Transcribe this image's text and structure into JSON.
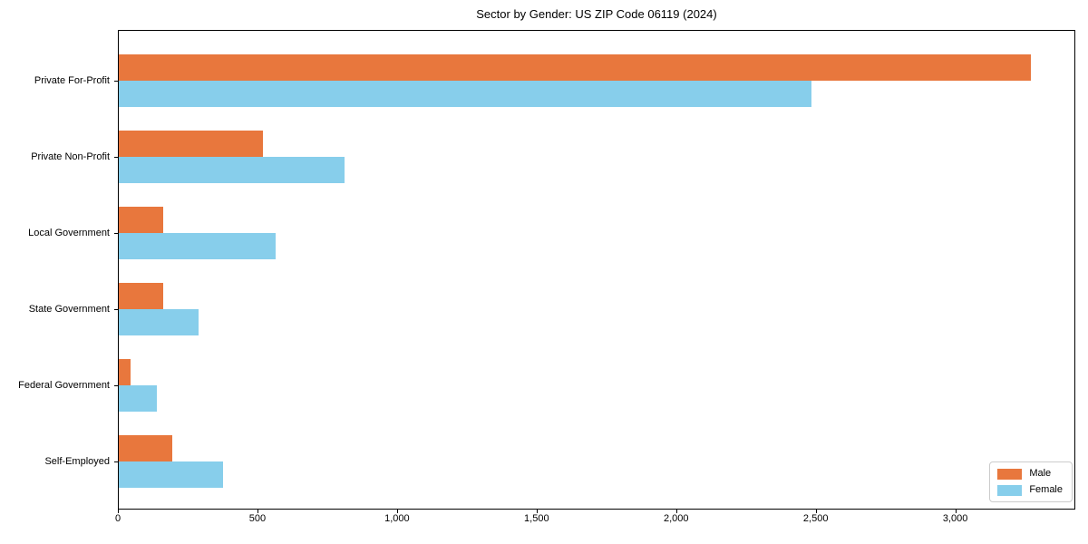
{
  "title": "Sector by Gender: US ZIP Code 06119 (2024)",
  "colors": {
    "male": "#e8773d",
    "female": "#87ceeb",
    "spine": "#000000",
    "legend_border": "#cccccc",
    "background": "#ffffff"
  },
  "legend": {
    "position": "lower right",
    "entries": [
      "Male",
      "Female"
    ]
  },
  "chart_data": {
    "type": "bar",
    "orientation": "horizontal",
    "title": "Sector by Gender: US ZIP Code 06119 (2024)",
    "xlabel": "",
    "ylabel": "",
    "categories": [
      "Private For-Profit",
      "Private Non-Profit",
      "Local Government",
      "State Government",
      "Federal Government",
      "Self-Employed"
    ],
    "series": [
      {
        "name": "Male",
        "color": "#e8773d",
        "values": [
          3266,
          517,
          159,
          159,
          42,
          192
        ]
      },
      {
        "name": "Female",
        "color": "#87ceeb",
        "values": [
          2480,
          810,
          562,
          286,
          137,
          374
        ]
      }
    ],
    "xlim": [
      0,
      3430
    ],
    "xticks": [
      0,
      500,
      1000,
      1500,
      2000,
      2500,
      3000
    ],
    "xtick_labels": [
      "0",
      "500",
      "1,000",
      "1,500",
      "2,000",
      "2,500",
      "3,000"
    ],
    "grid": false,
    "legend_position": "lower right"
  }
}
